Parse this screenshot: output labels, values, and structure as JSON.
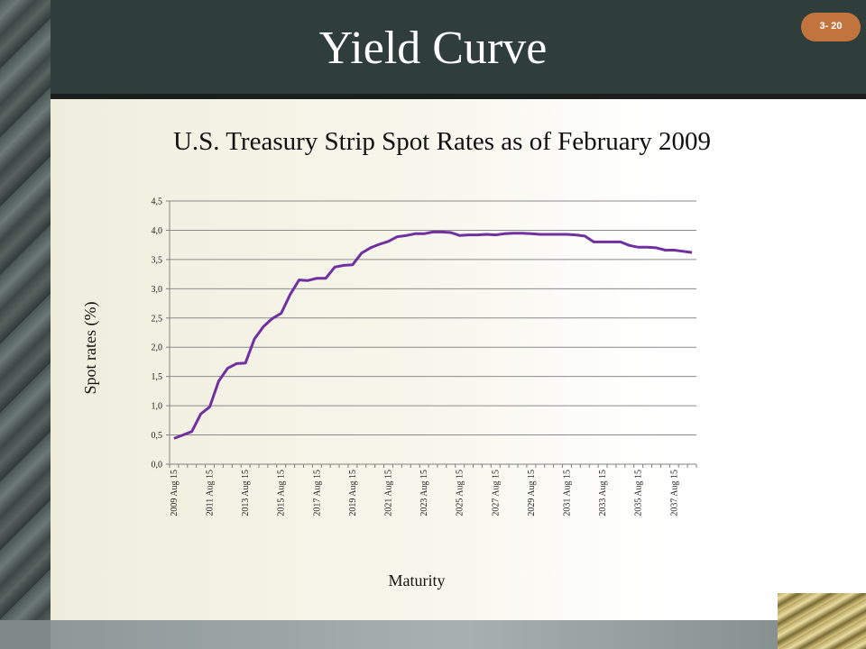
{
  "slide": {
    "title": "Yield Curve",
    "badge": "3- 20"
  },
  "chart_data": {
    "type": "line",
    "title": "U.S. Treasury Strip Spot Rates as of February 2009",
    "xlabel": "Maturity",
    "ylabel": "Spot rates (%)",
    "ylim": [
      0,
      4.5
    ],
    "yticks": [
      "0,0",
      "0,5",
      "1,0",
      "1,5",
      "2,0",
      "2,5",
      "3,0",
      "3,5",
      "4,0",
      "4,5"
    ],
    "xticks": [
      "2009 Aug 15",
      "2011 Aug 15",
      "2013 Aug 15",
      "2015 Aug 15",
      "2017 Aug 15",
      "2019 Aug 15",
      "2021 Aug 15",
      "2023 Aug 15",
      "2025 Aug 15",
      "2027 Aug 15",
      "2029 Aug 15",
      "2031 Aug 15",
      "2033 Aug 15",
      "2035 Aug 15",
      "2037 Aug 15"
    ],
    "grid": true,
    "line_color": "#7030a0",
    "series": [
      {
        "values": [
          0.44,
          0.5,
          0.56,
          0.86,
          0.98,
          1.42,
          1.64,
          1.72,
          1.73,
          2.14,
          2.35,
          2.49,
          2.58,
          2.9,
          3.15,
          3.14,
          3.18,
          3.18,
          3.37,
          3.4,
          3.41,
          3.61,
          3.7,
          3.76,
          3.81,
          3.89,
          3.91,
          3.94,
          3.94,
          3.97,
          3.97,
          3.96,
          3.91,
          3.92,
          3.92,
          3.93,
          3.92,
          3.94,
          3.95,
          3.95,
          3.94,
          3.93,
          3.93,
          3.93,
          3.93,
          3.92,
          3.9,
          3.8,
          3.8,
          3.8,
          3.8,
          3.74,
          3.71,
          3.71,
          3.7,
          3.66,
          3.66,
          3.64,
          3.62
        ]
      }
    ]
  }
}
